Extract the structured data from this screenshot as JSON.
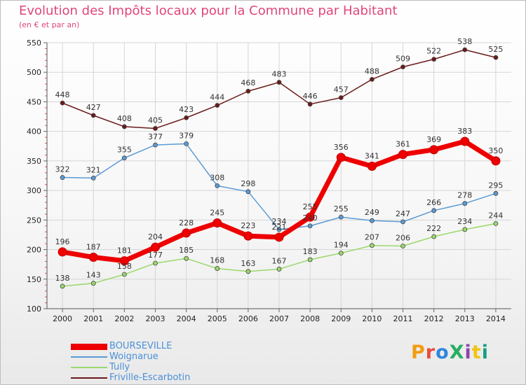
{
  "header": {
    "title": "Evolution des Impôts locaux pour la Commune par Habitant",
    "subtitle": "(en € et par an)"
  },
  "brand": {
    "text": "ProXiti",
    "colors": [
      "#f39c12",
      "#e74c3c",
      "#2e86de",
      "#27ae60",
      "#8e44ad",
      "#f1c40f",
      "#16a085"
    ]
  },
  "chart_data": {
    "type": "line",
    "title": "Evolution des Impôts locaux pour la Commune par Habitant",
    "subtitle": "(en € et par an)",
    "x": [
      "2000",
      "2001",
      "2002",
      "2003",
      "2004",
      "2005",
      "2006",
      "2007",
      "2008",
      "2009",
      "2010",
      "2011",
      "2012",
      "2013",
      "2014"
    ],
    "ylim": [
      100,
      550
    ],
    "yticks": [
      100,
      150,
      200,
      250,
      300,
      350,
      400,
      450,
      500,
      550
    ],
    "grid": true,
    "legend_position": "bottom-left",
    "series": [
      {
        "name": "Friville-Escarbotin",
        "color": "#6b1a1a",
        "values": [
          448,
          427,
          408,
          405,
          423,
          444,
          468,
          483,
          446,
          457,
          488,
          509,
          522,
          538,
          525
        ]
      },
      {
        "name": "Woignarue",
        "color": "#5b9bd5",
        "values": [
          322,
          321,
          355,
          377,
          379,
          308,
          298,
          234,
          240,
          255,
          249,
          247,
          266,
          278,
          295
        ]
      },
      {
        "name": "Tully",
        "color": "#9ad86b",
        "values": [
          138,
          143,
          158,
          177,
          185,
          168,
          163,
          167,
          183,
          194,
          207,
          206,
          222,
          234,
          244
        ]
      },
      {
        "name": "BOURSEVILLE",
        "color": "#ee0000",
        "values": [
          196,
          187,
          181,
          204,
          228,
          245,
          223,
          221,
          255,
          356,
          341,
          361,
          369,
          383,
          350
        ]
      }
    ]
  }
}
